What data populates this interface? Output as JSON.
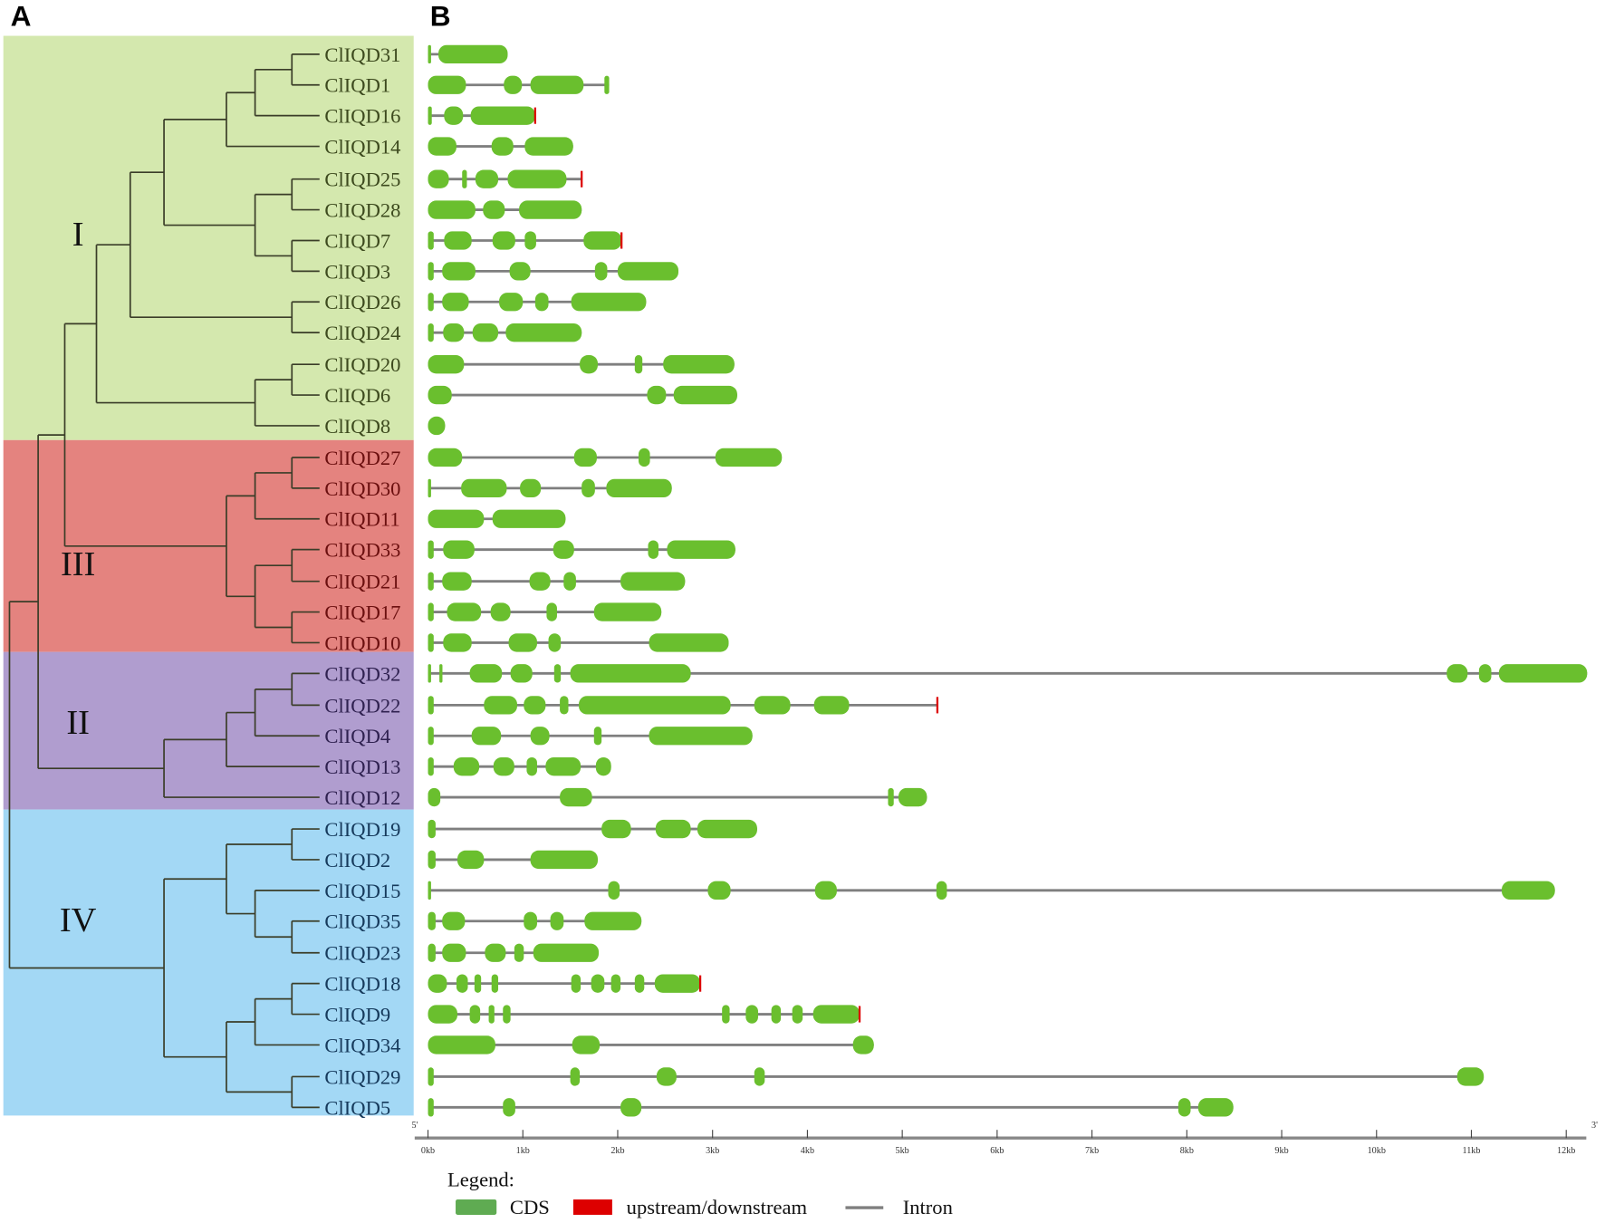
{
  "panels": {
    "a": "A",
    "b": "B"
  },
  "colors": {
    "exon": "#6abf2e",
    "intron": "#7f7f7f",
    "utr": "#dd0000",
    "legend_cds": "#5fab52",
    "branch": "#3a3d28"
  },
  "clades": [
    {
      "numeral": "I",
      "bg": "#d4e8ae",
      "text": "#3d4a1e",
      "genes": [
        "ClIQD31",
        "ClIQD1",
        "ClIQD16",
        "ClIQD14",
        "ClIQD25",
        "ClIQD28",
        "ClIQD7",
        "ClIQD3",
        "ClIQD26",
        "ClIQD24",
        "ClIQD20",
        "ClIQD6",
        "ClIQD8"
      ]
    },
    {
      "numeral": "III",
      "bg": "#e4837f",
      "text": "#6b0f0f",
      "genes": [
        "ClIQD27",
        "ClIQD30",
        "ClIQD11",
        "ClIQD33",
        "ClIQD21",
        "ClIQD17",
        "ClIQD10"
      ]
    },
    {
      "numeral": "II",
      "bg": "#b09dcf",
      "text": "#2f2150",
      "genes": [
        "ClIQD32",
        "ClIQD22",
        "ClIQD4",
        "ClIQD13",
        "ClIQD12"
      ]
    },
    {
      "numeral": "IV",
      "bg": "#a3d8f5",
      "text": "#163a5c",
      "genes": [
        "ClIQD19",
        "ClIQD2",
        "ClIQD15",
        "ClIQD35",
        "ClIQD23",
        "ClIQD18",
        "ClIQD9",
        "ClIQD34",
        "ClIQD29",
        "ClIQD5"
      ]
    }
  ],
  "tree": [
    [
      [
        [
          [
            [
              [
                [
                  [
                    "ClIQD31",
                    "ClIQD1"
                  ],
                  "ClIQD16"
                ],
                "ClIQD14"
              ],
              [
                [
                  "ClIQD25",
                  "ClIQD28"
                ],
                [
                  "ClIQD7",
                  "ClIQD3"
                ]
              ]
            ],
            [
              "ClIQD26",
              "ClIQD24"
            ]
          ],
          [
            [
              "ClIQD20",
              "ClIQD6"
            ],
            "ClIQD8"
          ]
        ],
        [
          [
            [
              "ClIQD27",
              "ClIQD30"
            ],
            "ClIQD11"
          ],
          [
            [
              "ClIQD33",
              "ClIQD21"
            ],
            [
              "ClIQD17",
              "ClIQD10"
            ]
          ]
        ]
      ],
      [
        [
          [
            [
              "ClIQD32",
              "ClIQD22"
            ],
            "ClIQD4"
          ],
          "ClIQD13"
        ],
        "ClIQD12"
      ]
    ],
    [
      [
        [
          "ClIQD19",
          "ClIQD2"
        ],
        [
          "ClIQD15",
          [
            "ClIQD35",
            "ClIQD23"
          ]
        ]
      ],
      [
        [
          [
            "ClIQD18",
            "ClIQD9"
          ],
          "ClIQD34"
        ],
        [
          "ClIQD29",
          "ClIQD5"
        ]
      ]
    ]
  ],
  "chart_data": {
    "type": "gene-structure",
    "x_unit": "kb",
    "xlim": [
      0,
      12.2
    ],
    "ticks": [
      "0kb",
      "1kb",
      "2kb",
      "3kb",
      "4kb",
      "5kb",
      "6kb",
      "7kb",
      "8kb",
      "9kb",
      "10kb",
      "11kb",
      "12kb"
    ],
    "end5": "5'",
    "end3": "3'",
    "genes": [
      {
        "name": "ClIQD31",
        "exons": [
          [
            0,
            0.03
          ],
          [
            0.11,
            0.84
          ]
        ]
      },
      {
        "name": "ClIQD1",
        "exons": [
          [
            0,
            0.4
          ],
          [
            0.8,
            0.99
          ],
          [
            1.08,
            1.64
          ],
          [
            1.86,
            1.91
          ]
        ]
      },
      {
        "name": "ClIQD16",
        "exons": [
          [
            0,
            0.04
          ],
          [
            0.17,
            0.37
          ],
          [
            0.45,
            1.13
          ]
        ],
        "utr3": true
      },
      {
        "name": "ClIQD14",
        "exons": [
          [
            0,
            0.3
          ],
          [
            0.67,
            0.9
          ],
          [
            1.02,
            1.53
          ]
        ]
      },
      {
        "name": "ClIQD25",
        "exons": [
          [
            0,
            0.22
          ],
          [
            0.36,
            0.41
          ],
          [
            0.5,
            0.74
          ],
          [
            0.84,
            1.46
          ]
        ],
        "end": 1.62,
        "utr3": true
      },
      {
        "name": "ClIQD28",
        "exons": [
          [
            0,
            0.5
          ],
          [
            0.58,
            0.81
          ],
          [
            0.96,
            1.62
          ]
        ]
      },
      {
        "name": "ClIQD7",
        "exons": [
          [
            0,
            0.06
          ],
          [
            0.17,
            0.46
          ],
          [
            0.68,
            0.92
          ],
          [
            1.02,
            1.14
          ],
          [
            1.64,
            2.04
          ]
        ],
        "utr3": true
      },
      {
        "name": "ClIQD3",
        "exons": [
          [
            0,
            0.06
          ],
          [
            0.15,
            0.5
          ],
          [
            0.86,
            1.08
          ],
          [
            1.76,
            1.89
          ],
          [
            2.0,
            2.64
          ]
        ]
      },
      {
        "name": "ClIQD26",
        "exons": [
          [
            0,
            0.06
          ],
          [
            0.15,
            0.43
          ],
          [
            0.75,
            1.0
          ],
          [
            1.13,
            1.27
          ],
          [
            1.51,
            2.3
          ]
        ]
      },
      {
        "name": "ClIQD24",
        "exons": [
          [
            0,
            0.06
          ],
          [
            0.16,
            0.38
          ],
          [
            0.47,
            0.74
          ],
          [
            0.82,
            1.62
          ]
        ]
      },
      {
        "name": "ClIQD20",
        "exons": [
          [
            0,
            0.38
          ],
          [
            1.6,
            1.79
          ],
          [
            2.18,
            2.26
          ],
          [
            2.48,
            3.23
          ]
        ]
      },
      {
        "name": "ClIQD6",
        "exons": [
          [
            0,
            0.25
          ],
          [
            2.31,
            2.51
          ],
          [
            2.59,
            3.26
          ]
        ]
      },
      {
        "name": "ClIQD8",
        "exons": [
          [
            0,
            0.18
          ]
        ]
      },
      {
        "name": "ClIQD27",
        "exons": [
          [
            0,
            0.36
          ],
          [
            1.54,
            1.78
          ],
          [
            2.22,
            2.34
          ],
          [
            3.03,
            3.73
          ]
        ]
      },
      {
        "name": "ClIQD30",
        "exons": [
          [
            0,
            0.01
          ],
          [
            0.35,
            0.83
          ],
          [
            0.97,
            1.19
          ],
          [
            1.62,
            1.76
          ],
          [
            1.88,
            2.57
          ]
        ]
      },
      {
        "name": "ClIQD11",
        "exons": [
          [
            0,
            0.59
          ],
          [
            0.68,
            1.45
          ]
        ]
      },
      {
        "name": "ClIQD33",
        "exons": [
          [
            0,
            0.06
          ],
          [
            0.16,
            0.49
          ],
          [
            1.32,
            1.54
          ],
          [
            2.32,
            2.43
          ],
          [
            2.52,
            3.24
          ]
        ]
      },
      {
        "name": "ClIQD21",
        "exons": [
          [
            0,
            0.06
          ],
          [
            0.15,
            0.46
          ],
          [
            1.07,
            1.29
          ],
          [
            1.43,
            1.56
          ],
          [
            2.03,
            2.71
          ]
        ]
      },
      {
        "name": "ClIQD17",
        "exons": [
          [
            0,
            0.06
          ],
          [
            0.2,
            0.56
          ],
          [
            0.66,
            0.87
          ],
          [
            1.25,
            1.36
          ],
          [
            1.75,
            2.46
          ]
        ]
      },
      {
        "name": "ClIQD10",
        "exons": [
          [
            0,
            0.06
          ],
          [
            0.16,
            0.46
          ],
          [
            0.85,
            1.15
          ],
          [
            1.27,
            1.4
          ],
          [
            2.33,
            3.17
          ]
        ]
      },
      {
        "name": "ClIQD32",
        "exons": [
          [
            0,
            0.01
          ],
          [
            0.12,
            0.15
          ],
          [
            0.44,
            0.78
          ],
          [
            0.87,
            1.1
          ],
          [
            1.33,
            1.4
          ],
          [
            1.5,
            2.77
          ],
          [
            10.74,
            10.96
          ],
          [
            11.08,
            11.21
          ],
          [
            11.29,
            12.22
          ]
        ]
      },
      {
        "name": "ClIQD22",
        "exons": [
          [
            0,
            0.06
          ],
          [
            0.59,
            0.94
          ],
          [
            1.01,
            1.24
          ],
          [
            1.39,
            1.48
          ],
          [
            1.59,
            3.19
          ],
          [
            3.44,
            3.82
          ],
          [
            4.07,
            4.44
          ]
        ],
        "end": 5.37,
        "utr3": true
      },
      {
        "name": "ClIQD4",
        "exons": [
          [
            0,
            0.06
          ],
          [
            0.46,
            0.77
          ],
          [
            1.08,
            1.28
          ],
          [
            1.75,
            1.83
          ],
          [
            2.33,
            3.42
          ]
        ]
      },
      {
        "name": "ClIQD13",
        "exons": [
          [
            0,
            0.06
          ],
          [
            0.27,
            0.54
          ],
          [
            0.69,
            0.91
          ],
          [
            1.04,
            1.15
          ],
          [
            1.24,
            1.61
          ],
          [
            1.77,
            1.93
          ]
        ]
      },
      {
        "name": "ClIQD12",
        "exons": [
          [
            0,
            0.13
          ],
          [
            1.39,
            1.73
          ],
          [
            4.85,
            4.91
          ],
          [
            4.96,
            5.26
          ]
        ]
      },
      {
        "name": "ClIQD19",
        "exons": [
          [
            0,
            0.08
          ],
          [
            1.83,
            2.14
          ],
          [
            2.4,
            2.77
          ],
          [
            2.84,
            3.47
          ]
        ]
      },
      {
        "name": "ClIQD2",
        "exons": [
          [
            0,
            0.08
          ],
          [
            0.31,
            0.59
          ],
          [
            1.08,
            1.79
          ]
        ]
      },
      {
        "name": "ClIQD15",
        "exons": [
          [
            0,
            0.01
          ],
          [
            1.9,
            2.02
          ],
          [
            2.95,
            3.19
          ],
          [
            4.08,
            4.31
          ],
          [
            5.36,
            5.47
          ],
          [
            11.32,
            11.88
          ]
        ]
      },
      {
        "name": "ClIQD35",
        "exons": [
          [
            0,
            0.08
          ],
          [
            0.15,
            0.39
          ],
          [
            1.01,
            1.15
          ],
          [
            1.29,
            1.43
          ],
          [
            1.65,
            2.25
          ]
        ]
      },
      {
        "name": "ClIQD23",
        "exons": [
          [
            0,
            0.08
          ],
          [
            0.15,
            0.4
          ],
          [
            0.6,
            0.82
          ],
          [
            0.91,
            1.01
          ],
          [
            1.11,
            1.8
          ]
        ]
      },
      {
        "name": "ClIQD18",
        "exons": [
          [
            0,
            0.2
          ],
          [
            0.3,
            0.42
          ],
          [
            0.49,
            0.56
          ],
          [
            0.67,
            0.74
          ],
          [
            1.51,
            1.61
          ],
          [
            1.72,
            1.86
          ],
          [
            1.93,
            2.03
          ],
          [
            2.18,
            2.28
          ],
          [
            2.39,
            2.87
          ]
        ],
        "utr3": true
      },
      {
        "name": "ClIQD9",
        "exons": [
          [
            0,
            0.31
          ],
          [
            0.44,
            0.55
          ],
          [
            0.64,
            0.7
          ],
          [
            0.79,
            0.87
          ],
          [
            3.1,
            3.18
          ],
          [
            3.35,
            3.48
          ],
          [
            3.62,
            3.72
          ],
          [
            3.84,
            3.95
          ],
          [
            4.06,
            4.55
          ]
        ],
        "utr3": true
      },
      {
        "name": "ClIQD34",
        "exons": [
          [
            0,
            0.71
          ],
          [
            1.52,
            1.81
          ],
          [
            4.48,
            4.7
          ]
        ]
      },
      {
        "name": "ClIQD29",
        "exons": [
          [
            0,
            0.06
          ],
          [
            1.5,
            1.6
          ],
          [
            2.41,
            2.62
          ],
          [
            3.44,
            3.55
          ],
          [
            10.85,
            11.13
          ]
        ]
      },
      {
        "name": "ClIQD5",
        "exons": [
          [
            0,
            0.06
          ],
          [
            0.79,
            0.92
          ],
          [
            2.03,
            2.25
          ],
          [
            7.91,
            8.04
          ],
          [
            8.12,
            8.49
          ]
        ]
      }
    ]
  },
  "legend": {
    "title": "Legend:",
    "cds": "CDS",
    "utr": "upstream/downstream",
    "intron": "Intron"
  }
}
